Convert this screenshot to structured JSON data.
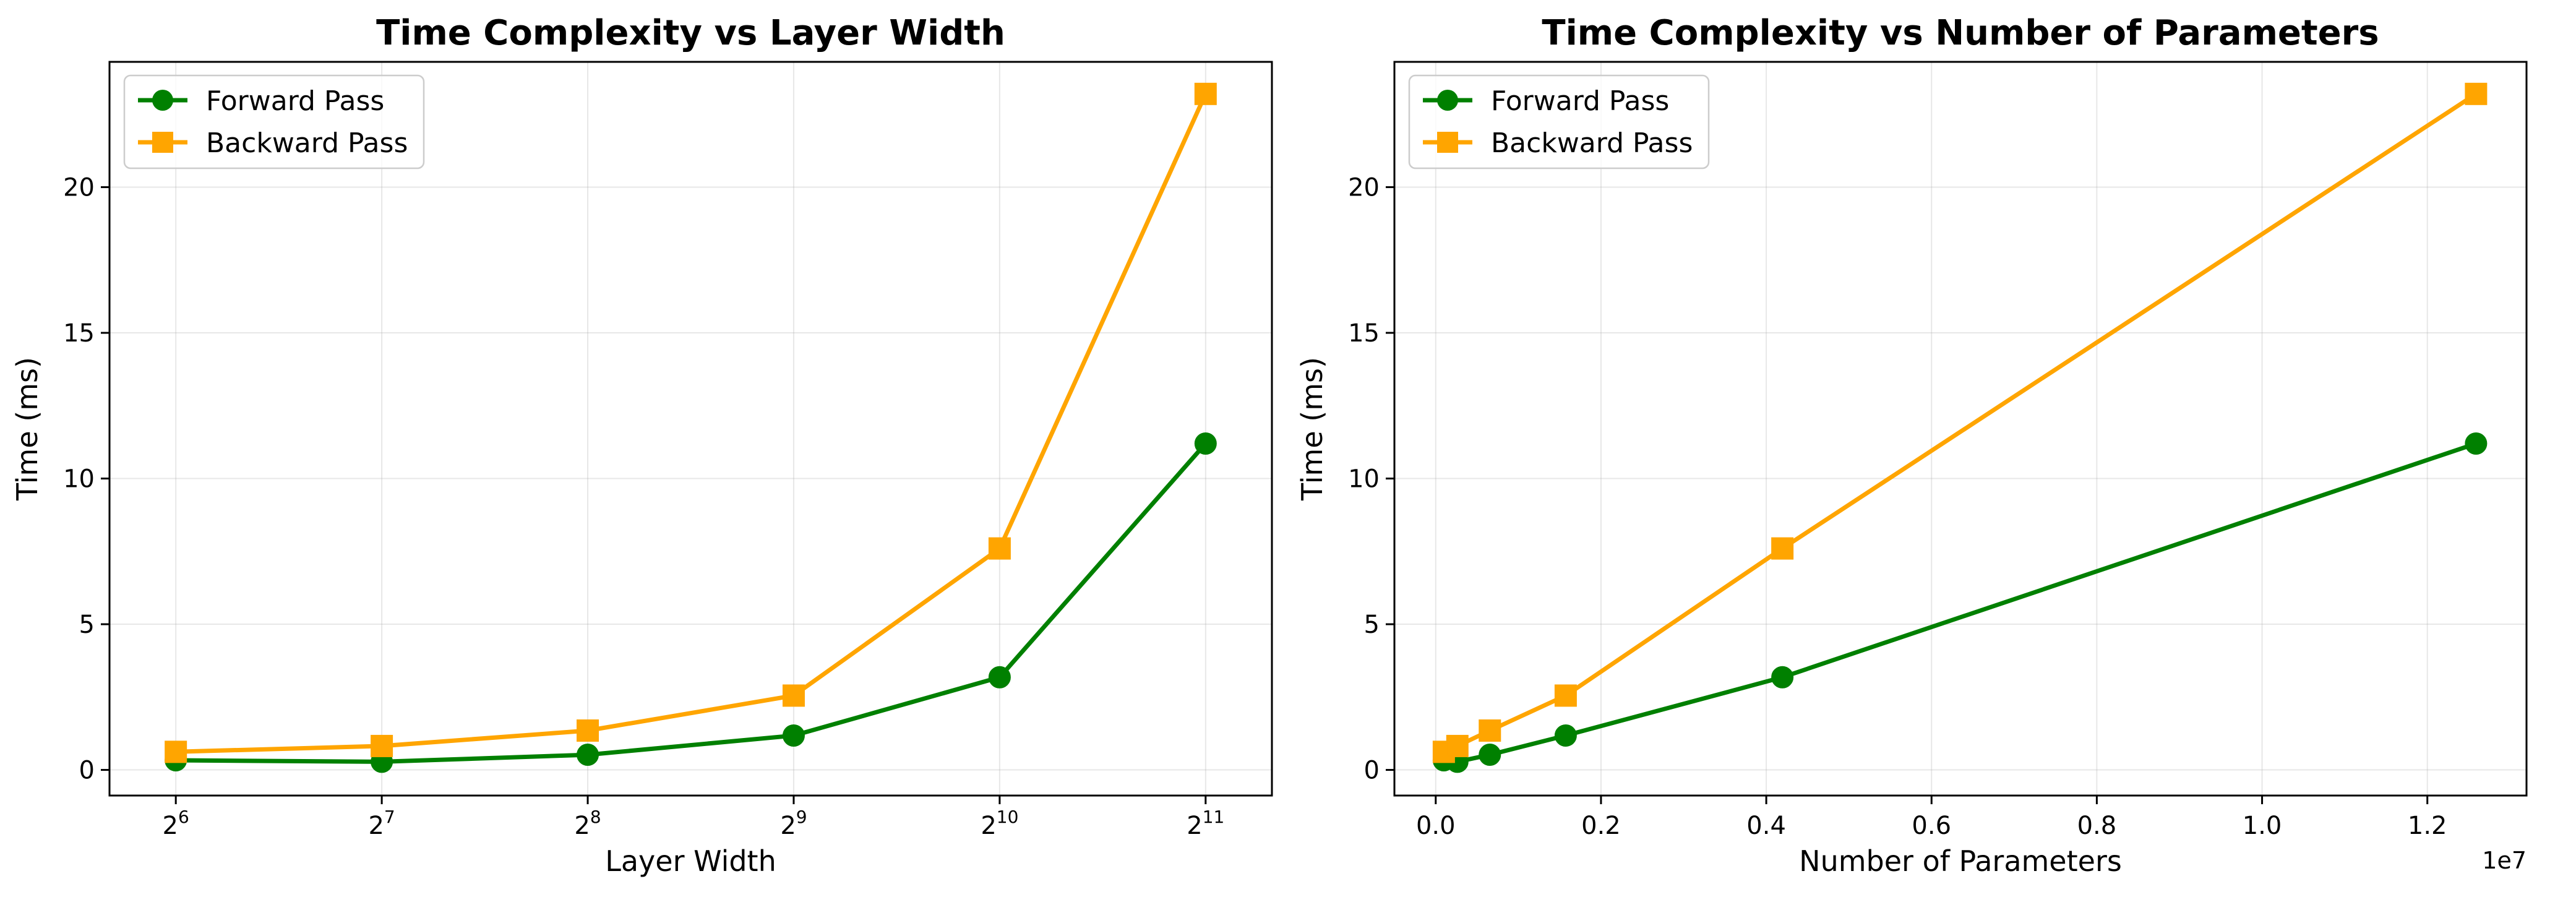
{
  "colors": {
    "forward": "#008000",
    "backward": "#FFA500"
  },
  "chart_data": [
    {
      "type": "line",
      "title": "Time Complexity vs Layer Width",
      "xlabel": "Layer Width",
      "ylabel": "Time (ms)",
      "xscale": "log2",
      "xlim": [
        51.2,
        2560
      ],
      "ylim": [
        -0.88,
        24.3
      ],
      "x": [
        64,
        128,
        256,
        512,
        1024,
        2048
      ],
      "x_ticks": [
        {
          "value": 64,
          "base": "2",
          "exp": "6"
        },
        {
          "value": 128,
          "base": "2",
          "exp": "7"
        },
        {
          "value": 256,
          "base": "2",
          "exp": "8"
        },
        {
          "value": 512,
          "base": "2",
          "exp": "9"
        },
        {
          "value": 1024,
          "base": "2",
          "exp": "10"
        },
        {
          "value": 2048,
          "base": "2",
          "exp": "11"
        }
      ],
      "y_ticks": [
        {
          "value": 0,
          "label": "0"
        },
        {
          "value": 5,
          "label": "5"
        },
        {
          "value": 10,
          "label": "10"
        },
        {
          "value": 15,
          "label": "15"
        },
        {
          "value": 20,
          "label": "20"
        }
      ],
      "grid": true,
      "legend": "upper left",
      "series": [
        {
          "name": "Forward Pass",
          "marker": "circle",
          "color_key": "forward",
          "values": [
            0.33,
            0.28,
            0.52,
            1.18,
            3.18,
            11.2
          ]
        },
        {
          "name": "Backward Pass",
          "marker": "square",
          "color_key": "backward",
          "values": [
            0.62,
            0.82,
            1.35,
            2.55,
            7.6,
            23.2
          ]
        }
      ]
    },
    {
      "type": "line",
      "title": "Time Complexity vs Number of Parameters",
      "xlabel": "Number of Parameters",
      "ylabel": "Time (ms)",
      "xscale": "linear",
      "xlim": [
        -500000,
        13200000
      ],
      "ylim": [
        -0.88,
        24.3
      ],
      "x_offset_label": "1e7",
      "x": [
        98000,
        262000,
        655000,
        1573000,
        4195000,
        12589000
      ],
      "x_ticks": [
        {
          "value": 0,
          "label": "0.0"
        },
        {
          "value": 2000000,
          "label": "0.2"
        },
        {
          "value": 4000000,
          "label": "0.4"
        },
        {
          "value": 6000000,
          "label": "0.6"
        },
        {
          "value": 8000000,
          "label": "0.8"
        },
        {
          "value": 10000000,
          "label": "1.0"
        },
        {
          "value": 12000000,
          "label": "1.2"
        }
      ],
      "y_ticks": [
        {
          "value": 0,
          "label": "0"
        },
        {
          "value": 5,
          "label": "5"
        },
        {
          "value": 10,
          "label": "10"
        },
        {
          "value": 15,
          "label": "15"
        },
        {
          "value": 20,
          "label": "20"
        }
      ],
      "grid": true,
      "legend": "upper left",
      "series": [
        {
          "name": "Forward Pass",
          "marker": "circle",
          "color_key": "forward",
          "values": [
            0.33,
            0.28,
            0.52,
            1.18,
            3.18,
            11.2
          ]
        },
        {
          "name": "Backward Pass",
          "marker": "square",
          "color_key": "backward",
          "values": [
            0.62,
            0.82,
            1.35,
            2.55,
            7.6,
            23.2
          ]
        }
      ]
    }
  ]
}
